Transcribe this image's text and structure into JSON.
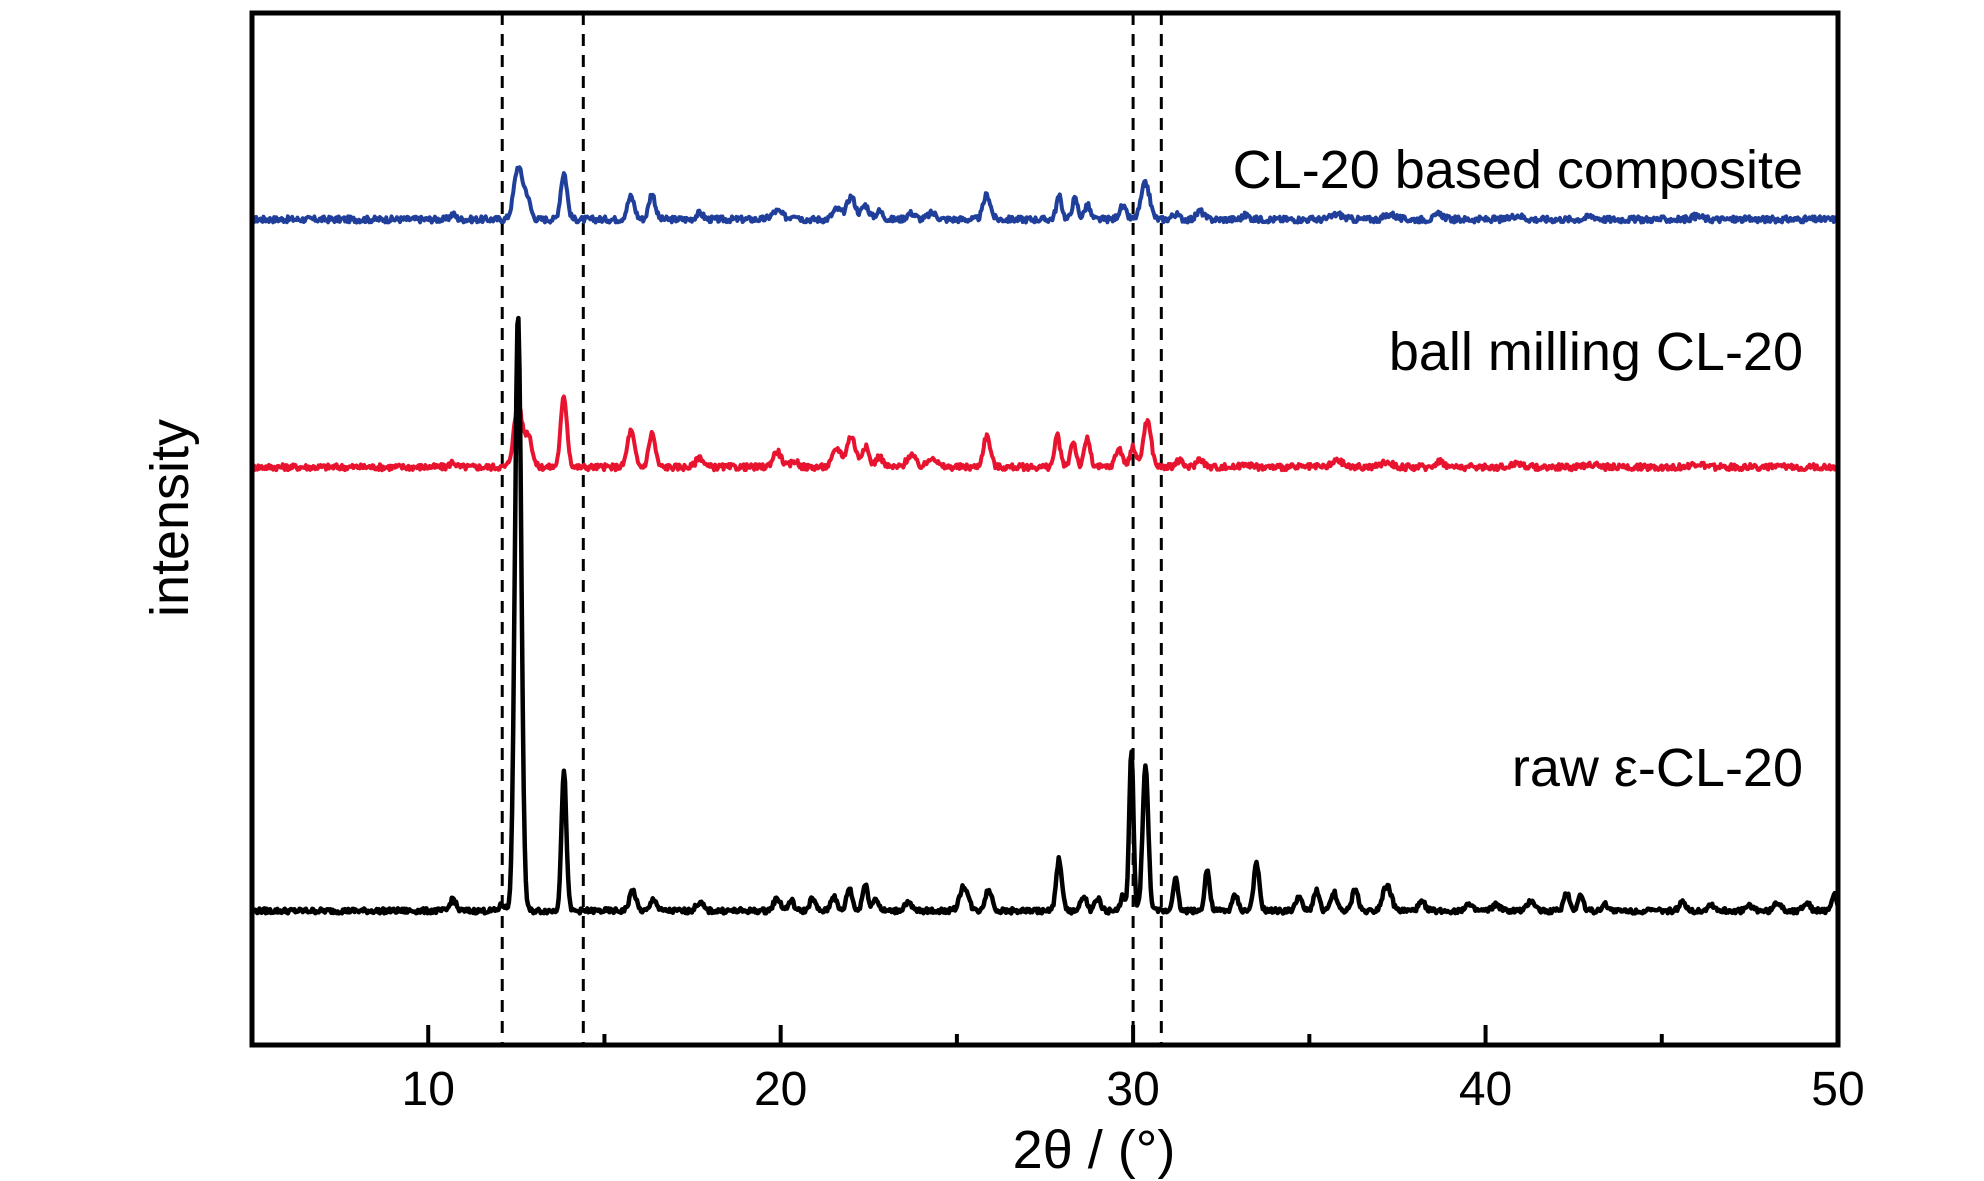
{
  "chart_data": {
    "type": "line",
    "xlabel": "2θ / (°)",
    "ylabel": "intensity",
    "xlim": [
      5,
      50
    ],
    "xticks_major": [
      10,
      20,
      30,
      40,
      50
    ],
    "xticks_minor": [
      15,
      25,
      35,
      45
    ],
    "y_ticks": "none",
    "grid": false,
    "reference_lines": [
      12.1,
      14.4,
      30.0,
      30.8
    ],
    "series": [
      {
        "name": "CL-20 based composite",
        "color": "#1f3f9a",
        "baseline": 0.8,
        "noise": 0.003,
        "peaks": [
          [
            10.7,
            0.005,
            0.08
          ],
          [
            12.55,
            0.05,
            0.12
          ],
          [
            12.8,
            0.02,
            0.1
          ],
          [
            13.85,
            0.045,
            0.09
          ],
          [
            15.75,
            0.022,
            0.1
          ],
          [
            16.35,
            0.025,
            0.09
          ],
          [
            17.7,
            0.006,
            0.1
          ],
          [
            19.9,
            0.008,
            0.15
          ],
          [
            20.4,
            0.005,
            0.1
          ],
          [
            21.6,
            0.01,
            0.12
          ],
          [
            22.0,
            0.022,
            0.12
          ],
          [
            22.4,
            0.014,
            0.1
          ],
          [
            22.8,
            0.008,
            0.1
          ],
          [
            23.7,
            0.006,
            0.12
          ],
          [
            24.3,
            0.006,
            0.12
          ],
          [
            25.85,
            0.024,
            0.1
          ],
          [
            27.9,
            0.022,
            0.08
          ],
          [
            28.35,
            0.02,
            0.08
          ],
          [
            28.7,
            0.014,
            0.08
          ],
          [
            29.7,
            0.012,
            0.1
          ],
          [
            30.35,
            0.035,
            0.12
          ],
          [
            31.2,
            0.005,
            0.1
          ],
          [
            31.9,
            0.008,
            0.1
          ],
          [
            33.2,
            0.004,
            0.1
          ],
          [
            35.8,
            0.005,
            0.15
          ],
          [
            37.3,
            0.005,
            0.15
          ],
          [
            38.7,
            0.005,
            0.12
          ],
          [
            40.9,
            0.004,
            0.15
          ],
          [
            43.0,
            0.003,
            0.15
          ],
          [
            46.0,
            0.003,
            0.15
          ]
        ]
      },
      {
        "name": "ball milling CL-20",
        "color": "#e8142f",
        "baseline": 0.56,
        "noise": 0.003,
        "peaks": [
          [
            10.7,
            0.005,
            0.08
          ],
          [
            12.55,
            0.06,
            0.12
          ],
          [
            12.85,
            0.03,
            0.1
          ],
          [
            13.85,
            0.068,
            0.09
          ],
          [
            15.75,
            0.035,
            0.1
          ],
          [
            16.35,
            0.033,
            0.09
          ],
          [
            17.7,
            0.01,
            0.1
          ],
          [
            19.9,
            0.015,
            0.12
          ],
          [
            20.4,
            0.006,
            0.1
          ],
          [
            21.6,
            0.018,
            0.12
          ],
          [
            22.0,
            0.03,
            0.12
          ],
          [
            22.4,
            0.02,
            0.1
          ],
          [
            22.8,
            0.01,
            0.1
          ],
          [
            23.7,
            0.012,
            0.12
          ],
          [
            24.3,
            0.01,
            0.12
          ],
          [
            25.85,
            0.03,
            0.1
          ],
          [
            27.85,
            0.03,
            0.08
          ],
          [
            28.3,
            0.025,
            0.08
          ],
          [
            28.7,
            0.028,
            0.08
          ],
          [
            29.6,
            0.018,
            0.1
          ],
          [
            30.0,
            0.02,
            0.08
          ],
          [
            30.4,
            0.045,
            0.11
          ],
          [
            31.3,
            0.006,
            0.1
          ],
          [
            31.9,
            0.008,
            0.1
          ],
          [
            33.2,
            0.004,
            0.1
          ],
          [
            35.8,
            0.006,
            0.15
          ],
          [
            37.2,
            0.005,
            0.15
          ],
          [
            38.7,
            0.006,
            0.12
          ],
          [
            40.9,
            0.004,
            0.15
          ],
          [
            43.0,
            0.003,
            0.15
          ],
          [
            46.0,
            0.003,
            0.15
          ]
        ]
      },
      {
        "name": "raw ε-CL-20",
        "color": "#000000",
        "baseline": 0.13,
        "noise": 0.0025,
        "peaks": [
          [
            10.7,
            0.012,
            0.08
          ],
          [
            12.1,
            0.006,
            0.08
          ],
          [
            12.55,
            0.58,
            0.09
          ],
          [
            13.85,
            0.135,
            0.07
          ],
          [
            15.8,
            0.02,
            0.09
          ],
          [
            16.4,
            0.012,
            0.08
          ],
          [
            17.7,
            0.008,
            0.1
          ],
          [
            19.9,
            0.012,
            0.1
          ],
          [
            20.3,
            0.01,
            0.08
          ],
          [
            20.9,
            0.012,
            0.08
          ],
          [
            21.5,
            0.015,
            0.08
          ],
          [
            21.95,
            0.022,
            0.08
          ],
          [
            22.4,
            0.025,
            0.08
          ],
          [
            22.7,
            0.012,
            0.08
          ],
          [
            23.6,
            0.008,
            0.1
          ],
          [
            25.2,
            0.024,
            0.12
          ],
          [
            25.9,
            0.02,
            0.1
          ],
          [
            27.9,
            0.05,
            0.08
          ],
          [
            28.6,
            0.015,
            0.08
          ],
          [
            29.0,
            0.012,
            0.08
          ],
          [
            29.7,
            0.015,
            0.06
          ],
          [
            29.95,
            0.155,
            0.06
          ],
          [
            30.35,
            0.14,
            0.08
          ],
          [
            31.2,
            0.032,
            0.07
          ],
          [
            32.1,
            0.04,
            0.07
          ],
          [
            32.9,
            0.015,
            0.08
          ],
          [
            33.5,
            0.045,
            0.08
          ],
          [
            34.7,
            0.014,
            0.08
          ],
          [
            35.2,
            0.02,
            0.08
          ],
          [
            35.7,
            0.018,
            0.08
          ],
          [
            36.3,
            0.022,
            0.08
          ],
          [
            37.2,
            0.025,
            0.12
          ],
          [
            38.2,
            0.008,
            0.1
          ],
          [
            39.5,
            0.006,
            0.1
          ],
          [
            40.3,
            0.006,
            0.1
          ],
          [
            41.3,
            0.01,
            0.1
          ],
          [
            42.3,
            0.018,
            0.08
          ],
          [
            42.7,
            0.015,
            0.08
          ],
          [
            43.4,
            0.006,
            0.1
          ],
          [
            45.6,
            0.008,
            0.1
          ],
          [
            46.4,
            0.006,
            0.1
          ],
          [
            47.5,
            0.005,
            0.1
          ],
          [
            48.3,
            0.008,
            0.1
          ],
          [
            49.1,
            0.008,
            0.1
          ],
          [
            49.9,
            0.018,
            0.06
          ]
        ]
      }
    ]
  }
}
